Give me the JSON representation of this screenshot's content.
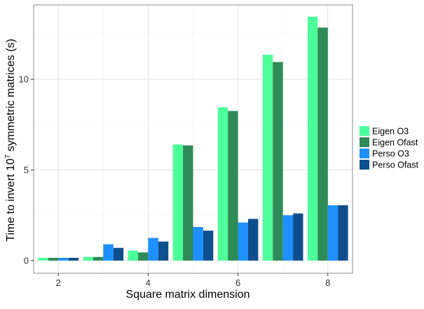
{
  "chart_data": {
    "type": "bar",
    "xlabel": "Square matrix dimension",
    "ylabel_prefix": "Time to invert 10",
    "ylabel_exponent": "7",
    "ylabel_suffix": " symmetric matrices (s)",
    "categories": [
      2,
      3,
      4,
      5,
      6,
      7,
      8
    ],
    "x_ticks": [
      "2",
      "4",
      "6",
      "8"
    ],
    "y_ticks": [
      "0",
      "5",
      "10"
    ],
    "xlim": [
      1.45,
      8.55
    ],
    "ylim": [
      -0.7,
      14.1
    ],
    "grid": true,
    "legend_position": "right",
    "series": [
      {
        "name": "Eigen O3",
        "color": "#4dff9a",
        "values": [
          0.15,
          0.2,
          0.55,
          6.4,
          8.45,
          11.35,
          13.45
        ]
      },
      {
        "name": "Eigen Ofast",
        "color": "#2e8b57",
        "values": [
          0.15,
          0.2,
          0.45,
          6.35,
          8.25,
          10.95,
          12.85
        ]
      },
      {
        "name": "Perso O3",
        "color": "#1e90ff",
        "values": [
          0.15,
          0.9,
          1.25,
          1.85,
          2.1,
          2.5,
          3.05
        ]
      },
      {
        "name": "Perso Ofast",
        "color": "#0f4e8c",
        "values": [
          0.15,
          0.7,
          1.05,
          1.65,
          2.3,
          2.6,
          3.05
        ]
      }
    ]
  }
}
